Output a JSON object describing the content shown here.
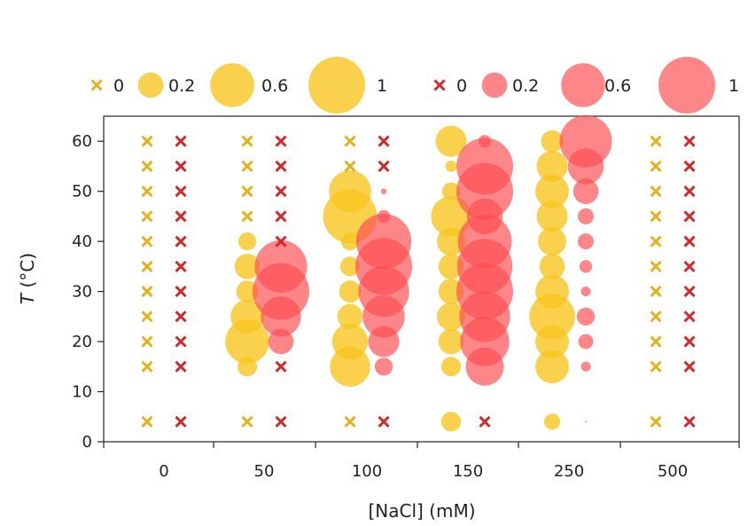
{
  "chart_data": {
    "type": "scatter",
    "title": "",
    "xlabel": "[NaCl] (mM)",
    "ylabel": "T (°C)",
    "ylabel_italic_part": "T",
    "ylabel_rest": " (°C)",
    "ylim": [
      0,
      65
    ],
    "yticks": [
      0,
      10,
      20,
      30,
      40,
      50,
      60
    ],
    "categories": [
      "0",
      "50",
      "100",
      "150",
      "250",
      "500"
    ],
    "series": [
      {
        "name": "yellow",
        "color": "#f7c520",
        "cross_color": "#e2b31d",
        "points": [
          [
            {
              "T": 4,
              "v": 0
            },
            {
              "T": 15,
              "v": 0
            },
            {
              "T": 20,
              "v": 0
            },
            {
              "T": 25,
              "v": 0
            },
            {
              "T": 30,
              "v": 0
            },
            {
              "T": 35,
              "v": 0
            },
            {
              "T": 40,
              "v": 0
            },
            {
              "T": 45,
              "v": 0
            },
            {
              "T": 50,
              "v": 0
            },
            {
              "T": 55,
              "v": 0
            },
            {
              "T": 60,
              "v": 0
            }
          ],
          [
            {
              "T": 4,
              "v": 0
            },
            {
              "T": 15,
              "v": 0.12
            },
            {
              "T": 20,
              "v": 0.6
            },
            {
              "T": 25,
              "v": 0.35
            },
            {
              "T": 30,
              "v": 0.15
            },
            {
              "T": 35,
              "v": 0.2
            },
            {
              "T": 40,
              "v": 0.1
            },
            {
              "T": 45,
              "v": 0
            },
            {
              "T": 50,
              "v": 0
            },
            {
              "T": 55,
              "v": 0
            },
            {
              "T": 60,
              "v": 0
            }
          ],
          [
            {
              "T": 4,
              "v": 0
            },
            {
              "T": 15,
              "v": 0.5
            },
            {
              "T": 20,
              "v": 0.4
            },
            {
              "T": 25,
              "v": 0.2
            },
            {
              "T": 30,
              "v": 0.15
            },
            {
              "T": 35,
              "v": 0.12
            },
            {
              "T": 40,
              "v": 0.1
            },
            {
              "T": 45,
              "v": 0.9
            },
            {
              "T": 50,
              "v": 0.55
            },
            {
              "T": 55,
              "v": 0
            },
            {
              "T": 60,
              "v": 0
            }
          ],
          [
            {
              "T": 4,
              "v": 0.12
            },
            {
              "T": 15,
              "v": 0.12
            },
            {
              "T": 20,
              "v": 0.2
            },
            {
              "T": 25,
              "v": 0.25
            },
            {
              "T": 30,
              "v": 0.2
            },
            {
              "T": 35,
              "v": 0.2
            },
            {
              "T": 40,
              "v": 0.25
            },
            {
              "T": 45,
              "v": 0.5
            },
            {
              "T": 50,
              "v": 0.1
            },
            {
              "T": 55,
              "v": 0.04
            },
            {
              "T": 60,
              "v": 0.3
            }
          ],
          [
            {
              "T": 4,
              "v": 0.08
            },
            {
              "T": 15,
              "v": 0.35
            },
            {
              "T": 20,
              "v": 0.35
            },
            {
              "T": 25,
              "v": 0.65
            },
            {
              "T": 30,
              "v": 0.35
            },
            {
              "T": 35,
              "v": 0.2
            },
            {
              "T": 40,
              "v": 0.25
            },
            {
              "T": 45,
              "v": 0.3
            },
            {
              "T": 50,
              "v": 0.35
            },
            {
              "T": 55,
              "v": 0.3
            },
            {
              "T": 60,
              "v": 0.15
            }
          ],
          [
            {
              "T": 4,
              "v": 0
            },
            {
              "T": 15,
              "v": 0
            },
            {
              "T": 20,
              "v": 0
            },
            {
              "T": 25,
              "v": 0
            },
            {
              "T": 30,
              "v": 0
            },
            {
              "T": 35,
              "v": 0
            },
            {
              "T": 40,
              "v": 0
            },
            {
              "T": 45,
              "v": 0
            },
            {
              "T": 50,
              "v": 0
            },
            {
              "T": 55,
              "v": 0
            },
            {
              "T": 60,
              "v": 0
            }
          ]
        ]
      },
      {
        "name": "red",
        "color": "#fc4d4f",
        "cross_color": "#d12a2a",
        "points": [
          [
            {
              "T": 4,
              "v": 0
            },
            {
              "T": 15,
              "v": 0
            },
            {
              "T": 20,
              "v": 0
            },
            {
              "T": 25,
              "v": 0
            },
            {
              "T": 30,
              "v": 0
            },
            {
              "T": 35,
              "v": 0
            },
            {
              "T": 40,
              "v": 0
            },
            {
              "T": 45,
              "v": 0
            },
            {
              "T": 50,
              "v": 0
            },
            {
              "T": 55,
              "v": 0
            },
            {
              "T": 60,
              "v": 0
            }
          ],
          [
            {
              "T": 4,
              "v": 0
            },
            {
              "T": 15,
              "v": 0
            },
            {
              "T": 20,
              "v": 0.2
            },
            {
              "T": 25,
              "v": 0.5
            },
            {
              "T": 30,
              "v": 1
            },
            {
              "T": 35,
              "v": 0.85
            },
            {
              "T": 40,
              "v": 0
            },
            {
              "T": 45,
              "v": 0
            },
            {
              "T": 50,
              "v": 0
            },
            {
              "T": 55,
              "v": 0
            },
            {
              "T": 60,
              "v": 0
            }
          ],
          [
            {
              "T": 4,
              "v": 0
            },
            {
              "T": 15,
              "v": 0.1
            },
            {
              "T": 20,
              "v": 0.3
            },
            {
              "T": 25,
              "v": 0.55
            },
            {
              "T": 30,
              "v": 0.8
            },
            {
              "T": 35,
              "v": 1
            },
            {
              "T": 40,
              "v": 0.95
            },
            {
              "T": 45,
              "v": 0.05
            },
            {
              "T": 50,
              "v": 0.01
            },
            {
              "T": 55,
              "v": 0
            },
            {
              "T": 60,
              "v": 0
            }
          ],
          [
            {
              "T": 4,
              "v": 0
            },
            {
              "T": 15,
              "v": 0.45
            },
            {
              "T": 20,
              "v": 0.75
            },
            {
              "T": 25,
              "v": 0.8
            },
            {
              "T": 30,
              "v": 1
            },
            {
              "T": 35,
              "v": 0.95
            },
            {
              "T": 40,
              "v": 0.9
            },
            {
              "T": 45,
              "v": 0.4
            },
            {
              "T": 50,
              "v": 1
            },
            {
              "T": 55,
              "v": 1
            },
            {
              "T": 60,
              "v": 0.05
            }
          ],
          [
            {
              "T": 4,
              "v": 0.001
            },
            {
              "T": 15,
              "v": 0.03
            },
            {
              "T": 20,
              "v": 0.07
            },
            {
              "T": 25,
              "v": 0.1
            },
            {
              "T": 30,
              "v": 0.03
            },
            {
              "T": 35,
              "v": 0.05
            },
            {
              "T": 40,
              "v": 0.08
            },
            {
              "T": 45,
              "v": 0.08
            },
            {
              "T": 50,
              "v": 0.2
            },
            {
              "T": 55,
              "v": 0.4
            },
            {
              "T": 60,
              "v": 0.85
            }
          ],
          [
            {
              "T": 4,
              "v": 0
            },
            {
              "T": 15,
              "v": 0
            },
            {
              "T": 20,
              "v": 0
            },
            {
              "T": 25,
              "v": 0
            },
            {
              "T": 30,
              "v": 0
            },
            {
              "T": 35,
              "v": 0
            },
            {
              "T": 40,
              "v": 0
            },
            {
              "T": 45,
              "v": 0
            },
            {
              "T": 50,
              "v": 0
            },
            {
              "T": 55,
              "v": 0
            },
            {
              "T": 60,
              "v": 0
            }
          ]
        ]
      }
    ],
    "legend": [
      {
        "series": "yellow",
        "items": [
          {
            "label": "0",
            "value": 0
          },
          {
            "label": "0.2",
            "value": 0.2
          },
          {
            "label": "0.6",
            "value": 0.6
          },
          {
            "label": "1",
            "value": 1
          }
        ]
      },
      {
        "series": "red",
        "items": [
          {
            "label": "0",
            "value": 0
          },
          {
            "label": "0.2",
            "value": 0.2
          },
          {
            "label": "0.6",
            "value": 0.6
          },
          {
            "label": "1",
            "value": 1
          }
        ]
      }
    ],
    "legend_position": "top"
  }
}
